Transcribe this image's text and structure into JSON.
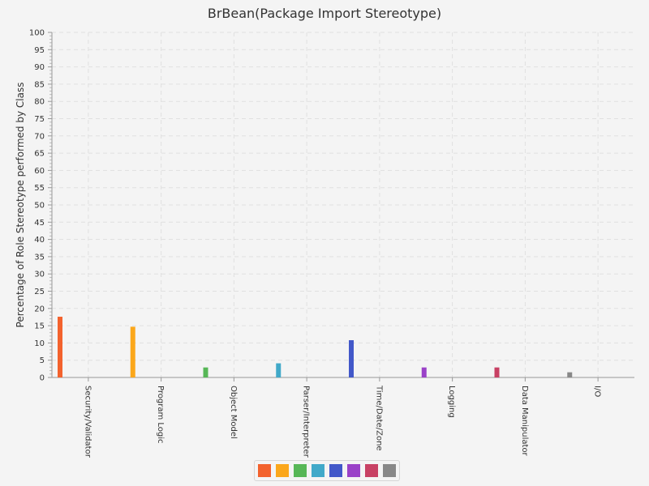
{
  "chart_data": {
    "type": "bar",
    "title": "BrBean(Package Import Stereotype)",
    "xlabel": "",
    "ylabel": "Percentage of Role Stereotype performed by Class",
    "ylim": [
      0,
      100
    ],
    "ytick_step": 5,
    "grid": true,
    "legend_position": "bottom-center",
    "categories": [
      "Security/Validator",
      "Program Logic",
      "Object Model",
      "Parser/Interpreter",
      "Time/Date/Zone",
      "Logging",
      "Data Manipulator",
      "I/O"
    ],
    "values": [
      17.6,
      14.7,
      2.9,
      4.1,
      10.8,
      2.9,
      2.9,
      1.5
    ],
    "colors": [
      "#f3622d",
      "#fba71b",
      "#57b757",
      "#41a9c9",
      "#4258c9",
      "#9a42c8",
      "#c84164",
      "#888888"
    ]
  }
}
